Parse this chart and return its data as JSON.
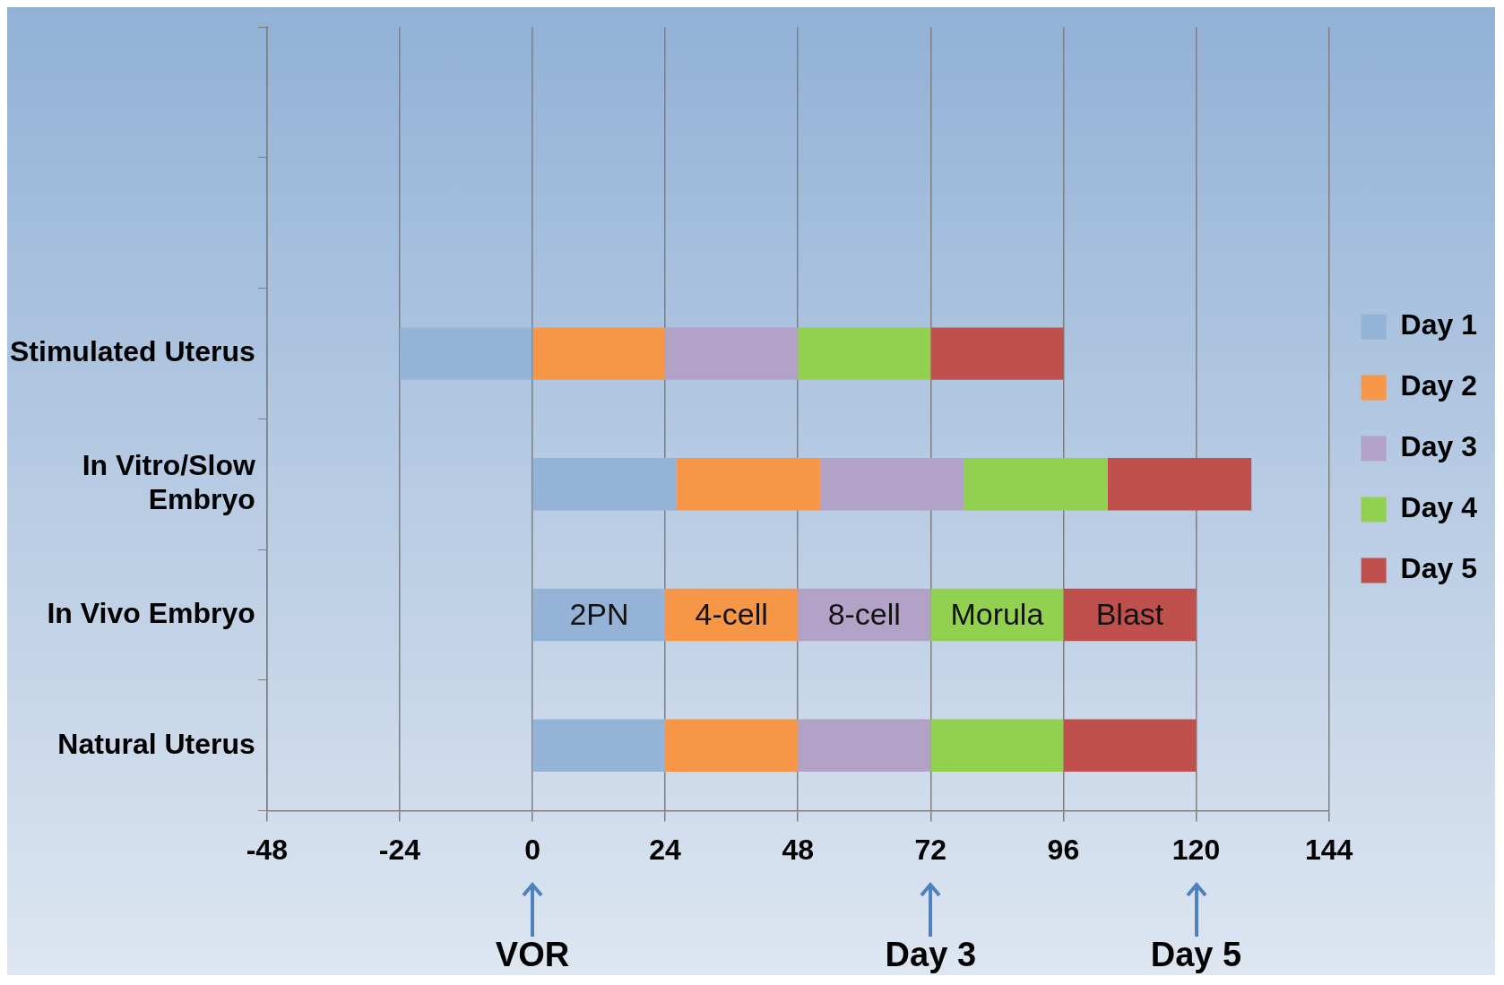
{
  "chart_data": {
    "type": "bar",
    "orientation": "horizontal",
    "categories": [
      null,
      null,
      "Stimulated Uterus",
      "In Vitro/Slow Embryo",
      "In Vivo Embryo",
      "Natural Uterus"
    ],
    "series": [
      {
        "name": "Day 1",
        "color": "#95b3d7",
        "base": [
          null,
          null,
          -24,
          0,
          0,
          0
        ],
        "values": [
          null,
          null,
          24,
          26,
          24,
          24
        ]
      },
      {
        "name": "Day 2",
        "color": "#f79646",
        "base": [
          null,
          null,
          0,
          26,
          24,
          24
        ],
        "values": [
          null,
          null,
          24,
          26,
          24,
          24
        ]
      },
      {
        "name": "Day 3",
        "color": "#b3a2c7",
        "base": [
          null,
          null,
          24,
          52,
          48,
          48
        ],
        "values": [
          null,
          null,
          24,
          26,
          24,
          24
        ]
      },
      {
        "name": "Day 4",
        "color": "#92d050",
        "base": [
          null,
          null,
          48,
          78,
          72,
          72
        ],
        "values": [
          null,
          null,
          24,
          26,
          24,
          24
        ]
      },
      {
        "name": "Day 5",
        "color": "#c0504d",
        "base": [
          null,
          null,
          72,
          104,
          96,
          96
        ],
        "values": [
          null,
          null,
          24,
          26,
          24,
          24
        ]
      }
    ],
    "xlim": [
      -48,
      144
    ],
    "xticks": [
      -48,
      -24,
      0,
      24,
      48,
      72,
      96,
      120,
      144
    ],
    "grid": "x",
    "legend": "right",
    "annotations": [
      {
        "text": "2PN",
        "x": 0,
        "y": "In Vivo Embryo"
      },
      {
        "text": "4-cell",
        "x": 24,
        "y": "In Vivo Embryo"
      },
      {
        "text": "8-cell",
        "x": 48,
        "y": "In Vivo Embryo"
      },
      {
        "text": "Morula",
        "x": 72,
        "y": "In Vivo Embryo"
      },
      {
        "text": "Blast",
        "x": 96,
        "y": "In Vivo Embryo"
      },
      {
        "text": "VOR",
        "x": 0
      },
      {
        "text": "Day 3",
        "x": 72
      },
      {
        "text": "Day 5",
        "x": 120
      }
    ]
  }
}
